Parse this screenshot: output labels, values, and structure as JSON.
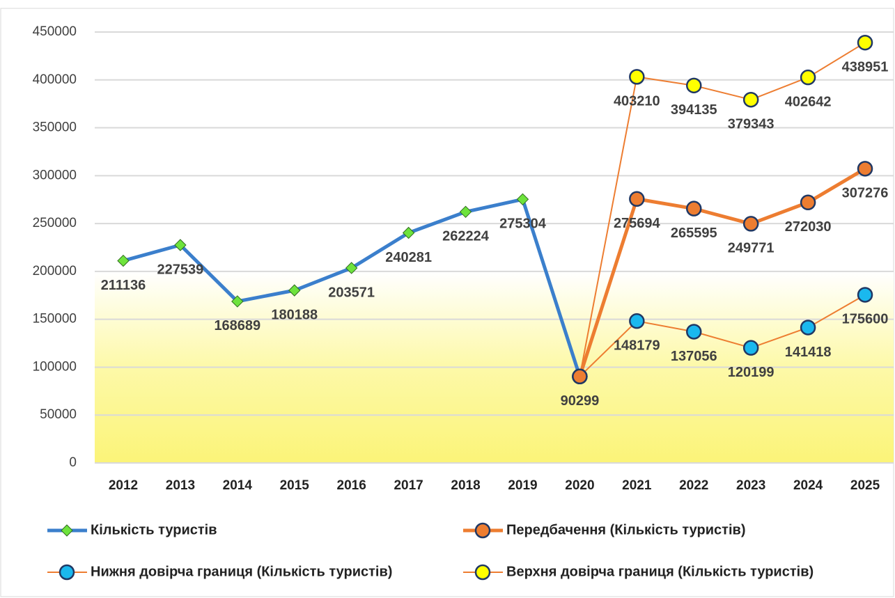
{
  "chart_data": {
    "type": "line",
    "categories": [
      "2012",
      "2013",
      "2014",
      "2015",
      "2016",
      "2017",
      "2018",
      "2019",
      "2020",
      "2021",
      "2022",
      "2023",
      "2024",
      "2025"
    ],
    "series": [
      {
        "name": "Кількість туристів",
        "color": "#3b7fcc",
        "marker": "diamond",
        "marker_color": "#6ee33c",
        "values": [
          211136,
          227539,
          168689,
          180188,
          203571,
          240281,
          262224,
          275304,
          90299,
          null,
          null,
          null,
          null,
          null
        ]
      },
      {
        "name": "Передбачення (Кількість туристів)",
        "color": "#ed7d31",
        "marker": "circle",
        "marker_color": "#ed7d31",
        "values": [
          null,
          null,
          null,
          null,
          null,
          null,
          null,
          null,
          90299,
          275694,
          265595,
          249771,
          272030,
          307276
        ]
      },
      {
        "name": "Нижня довірча границя (Кількість туристів)",
        "color": "#ed7d31",
        "marker": "circle",
        "marker_color": "#1ab8ee",
        "values": [
          null,
          null,
          null,
          null,
          null,
          null,
          null,
          null,
          90299,
          148179,
          137056,
          120199,
          141418,
          175600
        ]
      },
      {
        "name": "Верхня довірча границя (Кількість туристів)",
        "color": "#ed7d31",
        "marker": "circle",
        "marker_color": "#ffff00",
        "values": [
          null,
          null,
          null,
          null,
          null,
          null,
          null,
          null,
          90299,
          403210,
          394135,
          379343,
          402642,
          438951
        ]
      }
    ],
    "ylim": [
      0,
      450000
    ],
    "yticks": [
      0,
      50000,
      100000,
      150000,
      200000,
      250000,
      300000,
      350000,
      400000,
      450000
    ],
    "grid": true,
    "legend": "bottom"
  }
}
